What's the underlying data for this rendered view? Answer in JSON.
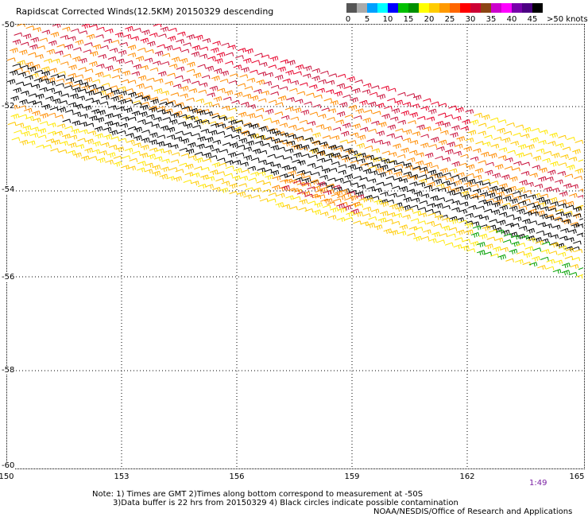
{
  "title": "Rapidscat Corrected Winds(12.5KM) 20150329 descending",
  "legend": {
    "colors": [
      "#555555",
      "#aaaaaa",
      "#00a0ff",
      "#00ffff",
      "#0000ff",
      "#00c000",
      "#009000",
      "#ffff00",
      "#ffcc00",
      "#ff9900",
      "#ff6600",
      "#ff0000",
      "#cc0033",
      "#8b4513",
      "#cc00cc",
      "#ff00ff",
      "#7700aa",
      "#4b0082",
      "#000000"
    ],
    "labels": [
      "0",
      "5",
      "10",
      "15",
      "20",
      "25",
      "30",
      "35",
      "40",
      "45",
      ">50 knots"
    ]
  },
  "axes": {
    "lat_labels": [
      "-50",
      "-52",
      "-54",
      "-56",
      "-58",
      "-60"
    ],
    "lon_labels": [
      "150",
      "153",
      "156",
      "159",
      "162",
      "165"
    ]
  },
  "time_label": "1:49",
  "notes": {
    "line1": "Note: 1) Times are GMT 2)Times along bottom correspond to measurement at -50S",
    "line2": "3)Data buffer is 22 hrs from 20150329 4) Black circles indicate possible contamination",
    "line3": "NOAA/NESDIS/Office of Research and Applications"
  },
  "wind_colors": {
    "dark": "#000000",
    "red": "#e8002a",
    "crimson": "#c8103a",
    "orange": "#ff8c00",
    "yellow": "#ffe800",
    "gold": "#ffc800",
    "green": "#00a000"
  }
}
